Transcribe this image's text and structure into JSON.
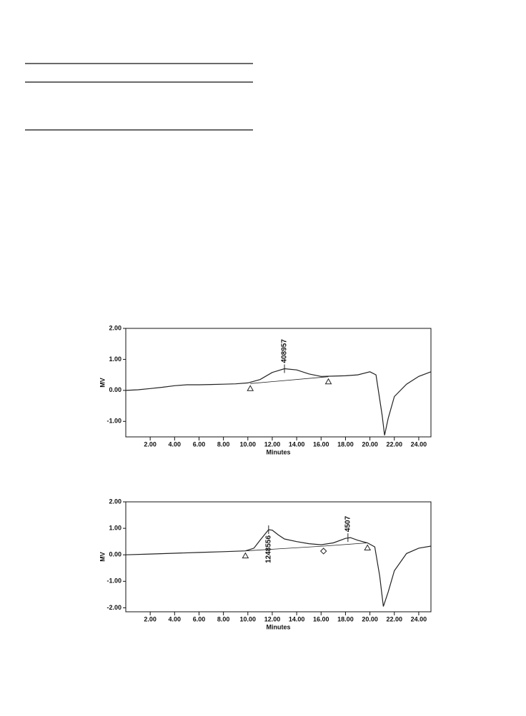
{
  "chart_data": [
    {
      "type": "line",
      "ylabel": "MV",
      "xlabel": "Minutes",
      "color": "#222222",
      "xlim": [
        0,
        25
      ],
      "ylim": [
        -1.5,
        2.0
      ],
      "xticks": [
        {
          "value": 2,
          "label": "2.00"
        },
        {
          "value": 4,
          "label": "4.00"
        },
        {
          "value": 6,
          "label": "6.00"
        },
        {
          "value": 8,
          "label": "8.00"
        },
        {
          "value": 10,
          "label": "10.00"
        },
        {
          "value": 12,
          "label": "12.00"
        },
        {
          "value": 14,
          "label": "14.00"
        },
        {
          "value": 16,
          "label": "16.00"
        },
        {
          "value": 18,
          "label": "18.00"
        },
        {
          "value": 20,
          "label": "20.00"
        },
        {
          "value": 22,
          "label": "22.00"
        },
        {
          "value": 24,
          "label": "24.00"
        }
      ],
      "yticks": [
        {
          "value": -1,
          "label": "-1.00"
        },
        {
          "value": 0,
          "label": "0.00"
        },
        {
          "value": 1,
          "label": "1.00"
        },
        {
          "value": 2,
          "label": "2.00"
        }
      ],
      "x": [
        0,
        1,
        2,
        3,
        4,
        5,
        6,
        7,
        8,
        9,
        10,
        11,
        12,
        13,
        14,
        15,
        16,
        17,
        18,
        19,
        20,
        20.5,
        21,
        21.2,
        21.5,
        22,
        23,
        24,
        25
      ],
      "values": [
        0,
        0.02,
        0.06,
        0.1,
        0.15,
        0.18,
        0.18,
        0.19,
        0.2,
        0.21,
        0.24,
        0.35,
        0.58,
        0.7,
        0.66,
        0.53,
        0.45,
        0.46,
        0.47,
        0.5,
        0.6,
        0.5,
        -0.8,
        -1.45,
        -0.9,
        -0.2,
        0.2,
        0.45,
        0.6
      ],
      "baseline": {
        "x": [
          10.2,
          16.6
        ],
        "y": [
          0.22,
          0.44
        ],
        "markers": [
          "triangle",
          "triangle"
        ]
      },
      "peaks": [
        {
          "label": "408957",
          "x": 13.0,
          "y": 0.7,
          "position": "above"
        }
      ]
    },
    {
      "type": "line",
      "ylabel": "MV",
      "xlabel": "Minutes",
      "color": "#222222",
      "xlim": [
        0,
        25
      ],
      "ylim": [
        -2.15,
        2.0
      ],
      "xticks": [
        {
          "value": 2,
          "label": "2.00"
        },
        {
          "value": 4,
          "label": "4.00"
        },
        {
          "value": 6,
          "label": "6.00"
        },
        {
          "value": 8,
          "label": "8.00"
        },
        {
          "value": 10,
          "label": "10.00"
        },
        {
          "value": 12,
          "label": "12.00"
        },
        {
          "value": 14,
          "label": "14.00"
        },
        {
          "value": 16,
          "label": "16.00"
        },
        {
          "value": 18,
          "label": "18.00"
        },
        {
          "value": 20,
          "label": "20.00"
        },
        {
          "value": 22,
          "label": "22.00"
        },
        {
          "value": 24,
          "label": "24.00"
        }
      ],
      "yticks": [
        {
          "value": -2,
          "label": "-2.00"
        },
        {
          "value": -1,
          "label": "-1.00"
        },
        {
          "value": 0,
          "label": "0.00"
        },
        {
          "value": 1,
          "label": "1.00"
        },
        {
          "value": 2,
          "label": "2.00"
        }
      ],
      "x": [
        0,
        2,
        4,
        6,
        8,
        9.8,
        10.5,
        11,
        11.7,
        12,
        12.5,
        13,
        14,
        15,
        16,
        17,
        18,
        18.4,
        19,
        19.8,
        20.4,
        20.8,
        21.1,
        21.5,
        22,
        23,
        24,
        25
      ],
      "values": [
        0,
        0.03,
        0.06,
        0.09,
        0.12,
        0.15,
        0.25,
        0.55,
        0.95,
        0.93,
        0.75,
        0.6,
        0.5,
        0.42,
        0.38,
        0.45,
        0.62,
        0.65,
        0.55,
        0.45,
        0.3,
        -0.8,
        -1.95,
        -1.4,
        -0.6,
        0.05,
        0.25,
        0.33
      ],
      "baseline": {
        "x": [
          9.8,
          16.2,
          19.8
        ],
        "y": [
          0.15,
          0.33,
          0.45
        ],
        "markers": [
          "triangle",
          "diamond",
          "triangle"
        ]
      },
      "peaks": [
        {
          "label": "1248556",
          "x": 11.7,
          "y": 0.95,
          "position": "below"
        },
        {
          "label": "4507",
          "x": 18.2,
          "y": 0.65,
          "position": "above"
        }
      ]
    }
  ]
}
